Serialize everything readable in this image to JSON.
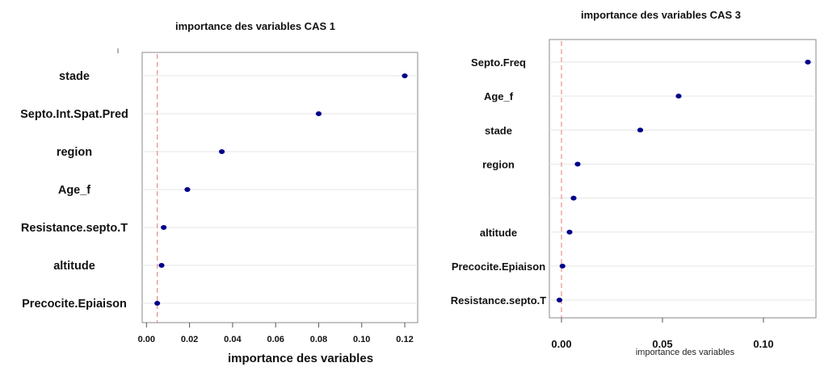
{
  "chart_data": [
    {
      "type": "scatter",
      "title": "importance des variables CAS 1",
      "xlabel": "importance des variables",
      "ylabel": "",
      "categories": [
        "stade",
        "Septo.Int.Spat.Pred",
        "region",
        "Age_f",
        "Resistance.septo.T",
        "altitude",
        "Precocite.Epiaison"
      ],
      "values": [
        0.12,
        0.08,
        0.035,
        0.019,
        0.008,
        0.007,
        0.005
      ],
      "xlim": [
        -0.002,
        0.126
      ],
      "xticks": [
        "0.00",
        "0.02",
        "0.04",
        "0.06",
        "0.08",
        "0.10",
        "0.12"
      ],
      "reference_line": 0.005,
      "grid": true,
      "colors": {
        "point": "#00008b",
        "reference_line": "#e8877e",
        "grid": "#e6e6e6",
        "frame": "#888888"
      }
    },
    {
      "type": "scatter",
      "title": "importance des variables CAS 3",
      "xlabel": "importance des variables",
      "ylabel": "",
      "categories": [
        "Septo.Freq",
        "Age_f",
        "stade",
        "region",
        "",
        "altitude",
        "Precocite.Epiaison",
        "Resistance.septo.T"
      ],
      "values": [
        0.122,
        0.058,
        0.039,
        0.008,
        0.006,
        0.004,
        0.0005,
        -0.001
      ],
      "xlim": [
        -0.006,
        0.126
      ],
      "xticks": [
        "0.00",
        "0.05",
        "0.10"
      ],
      "reference_line": 0.0,
      "grid": true,
      "colors": {
        "point": "#00008b",
        "reference_line": "#e8877e",
        "grid": "#e6e6e6",
        "frame": "#888888"
      }
    }
  ]
}
